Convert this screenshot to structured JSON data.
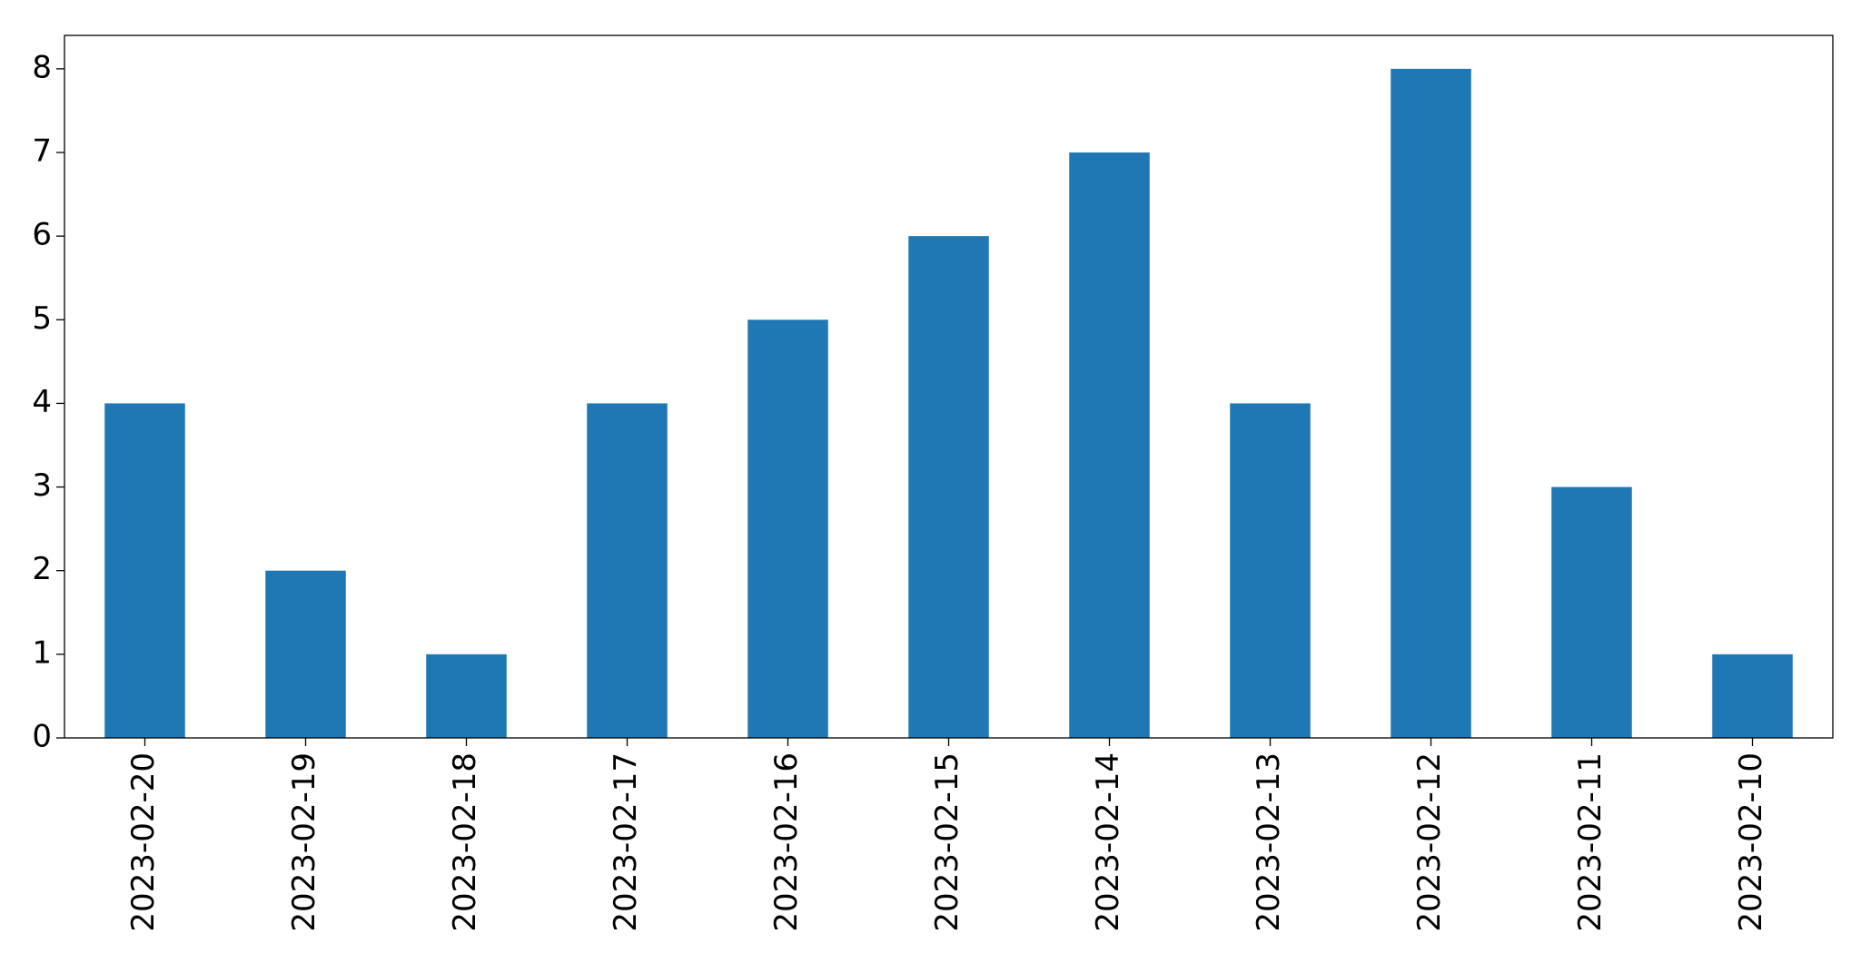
{
  "chart_data": {
    "type": "bar",
    "categories": [
      "2023-02-20",
      "2023-02-19",
      "2023-02-18",
      "2023-02-17",
      "2023-02-16",
      "2023-02-15",
      "2023-02-14",
      "2023-02-13",
      "2023-02-12",
      "2023-02-11",
      "2023-02-10"
    ],
    "values": [
      4,
      2,
      1,
      4,
      5,
      6,
      7,
      4,
      8,
      3,
      1
    ],
    "color": "#1f77b4",
    "ylim": [
      0,
      8.4
    ],
    "yticks": [
      0,
      1,
      2,
      3,
      4,
      5,
      6,
      7,
      8
    ],
    "grid": false
  }
}
